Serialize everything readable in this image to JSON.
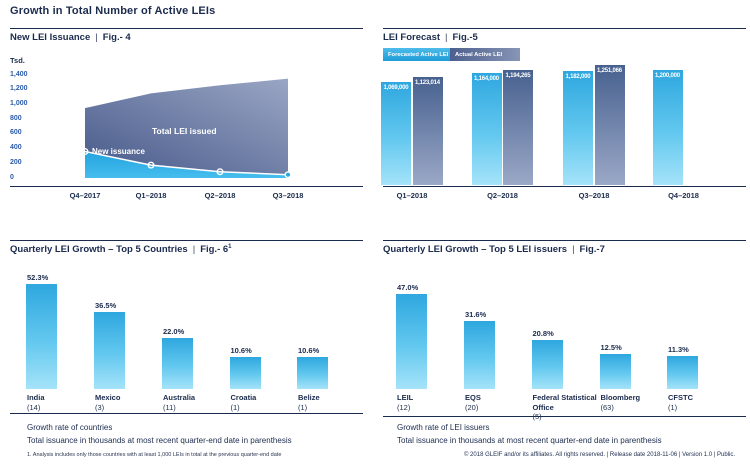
{
  "page": {
    "title": "Growth in Total Number of Active LEIs",
    "sep": "|",
    "footnote": "1. Analysis includes only those countries with at least 1,000 LEIs in total at the previous quarter-end date",
    "footer": "© 2018 GLEIF and/or its affiliates. All rights reserved.  |  Release date 2018-11-06  |  Version 1.0  |  Public."
  },
  "colors": {
    "navy_text": "#1b2b4d",
    "tick_blue": "#2d5ca8",
    "cyan_bar_top": "#2ea7df",
    "cyan_bar_bottom": "#a5e3f9",
    "slate_bar_top": "#47618f",
    "slate_bar_bottom": "#9ba8c7",
    "area_total_dark": "#47598a",
    "area_total_light": "#9aa6c4",
    "area_new_top": "#23a3de",
    "area_new_bottom": "#45bdee",
    "marker_white": "#ffffff"
  },
  "chart_data": [
    {
      "id": "fig4",
      "type": "area",
      "title": "New LEI Issuance",
      "fig_label": "Fig.- 4",
      "unit_label": "Tsd.",
      "categories": [
        "Q4–2017",
        "Q1–2018",
        "Q2–2018",
        "Q3–2018"
      ],
      "series": [
        {
          "name": "Total LEI issued",
          "values": [
            950,
            1150,
            1260,
            1350
          ]
        },
        {
          "name": "New issuance",
          "values": [
            360,
            175,
            85,
            45
          ]
        }
      ],
      "ylim": [
        0,
        1400
      ],
      "ytick_values": [
        1400,
        1200,
        1000,
        800,
        600,
        400,
        200,
        0
      ],
      "ytick_labels": [
        "1,400",
        "1,200",
        "1,000",
        "800",
        "600",
        "400",
        "200",
        "0"
      ],
      "values_estimated_from_gridlines": true,
      "grid": false
    },
    {
      "id": "fig5",
      "type": "bar",
      "title": "LEI Forecast",
      "fig_label": "Fig.-5",
      "legend_position": "top-left",
      "categories": [
        "Q1–2018",
        "Q2–2018",
        "Q3–2018",
        "Q4–2018"
      ],
      "series": [
        {
          "name": "Forecasted Active LEI",
          "values": [
            1069000,
            1164000,
            1182000,
            1200000
          ],
          "labels": [
            "1,069,000",
            "1,164,000",
            "1,182,000",
            "1,200,000"
          ]
        },
        {
          "name": "Actual Active LEI",
          "values": [
            1123014,
            1194265,
            1251066,
            null
          ],
          "labels": [
            "1,123,014",
            "1,194,265",
            "1,251,066",
            null
          ]
        }
      ]
    },
    {
      "id": "fig6",
      "type": "bar",
      "title": "Quarterly LEI Growth – Top 5 Countries",
      "fig_label": "Fig.- 6",
      "fig_superscript": "1",
      "categories": [
        "India",
        "Mexico",
        "Australia",
        "Croatia",
        "Belize"
      ],
      "counts": [
        "(14)",
        "(3)",
        "(11)",
        "(1)",
        "(1)"
      ],
      "values": [
        52.3,
        36.5,
        22.0,
        10.6,
        10.6
      ],
      "value_labels": [
        "52.3%",
        "36.5%",
        "22.0%",
        "10.6%",
        "10.6%"
      ],
      "notes": [
        "Growth rate of countries",
        "Total issuance in thousands at most recent quarter-end date in parenthesis"
      ]
    },
    {
      "id": "fig7",
      "type": "bar",
      "title": "Quarterly LEI Growth – Top 5 LEI issuers",
      "fig_label": "Fig.-7",
      "categories": [
        "LEIL",
        "EQS",
        "Federal Statistical Office",
        "Bloomberg",
        "CFSTC"
      ],
      "counts": [
        "(12)",
        "(20)",
        "(5)",
        "(63)",
        "(1)"
      ],
      "values": [
        47.0,
        31.6,
        20.8,
        12.5,
        11.3
      ],
      "value_labels": [
        "47.0%",
        "31.6%",
        "20.8%",
        "12.5%",
        "11.3%"
      ],
      "notes": [
        "Growth rate of LEI issuers",
        "Total issuance in thousands at most recent quarter-end date in parenthesis"
      ]
    }
  ]
}
